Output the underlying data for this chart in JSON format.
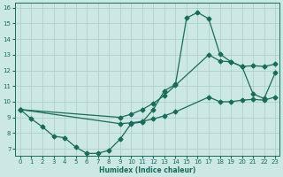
{
  "bg_color": "#cce8e5",
  "grid_color": "#aaccca",
  "line_color": "#1a6b5a",
  "xlabel": "Humidex (Indice chaleur)",
  "xlim_min": -0.5,
  "xlim_max": 23.4,
  "ylim_min": 6.55,
  "ylim_max": 16.3,
  "xticks": [
    0,
    1,
    2,
    3,
    4,
    5,
    6,
    7,
    8,
    9,
    10,
    11,
    12,
    13,
    14,
    15,
    16,
    17,
    18,
    19,
    20,
    21,
    22,
    23
  ],
  "yticks": [
    7,
    8,
    9,
    10,
    11,
    12,
    13,
    14,
    15,
    16
  ],
  "main_x": [
    0,
    1,
    2,
    3,
    4,
    5,
    6,
    7,
    8,
    9,
    10,
    11,
    12,
    13,
    14,
    15,
    16,
    17,
    18,
    19,
    20,
    21,
    22,
    23
  ],
  "main_y": [
    9.5,
    8.9,
    8.4,
    7.8,
    7.7,
    7.1,
    6.7,
    6.7,
    6.9,
    7.6,
    8.6,
    8.7,
    9.5,
    10.7,
    11.1,
    15.35,
    15.7,
    15.3,
    13.05,
    12.55,
    12.25,
    10.5,
    10.2,
    11.85
  ],
  "upper_x": [
    0,
    9,
    10,
    11,
    12,
    13,
    14,
    17,
    18,
    19,
    20,
    21,
    22,
    23
  ],
  "upper_y": [
    9.5,
    9.0,
    9.2,
    9.5,
    9.9,
    10.4,
    11.05,
    13.0,
    12.6,
    12.55,
    12.25,
    12.3,
    12.25,
    12.4
  ],
  "lower_x": [
    0,
    9,
    10,
    11,
    12,
    13,
    14,
    17,
    18,
    19,
    20,
    21,
    22,
    23
  ],
  "lower_y": [
    9.5,
    8.6,
    8.65,
    8.75,
    8.9,
    9.1,
    9.35,
    10.3,
    10.0,
    10.0,
    10.1,
    10.15,
    10.1,
    10.3
  ]
}
